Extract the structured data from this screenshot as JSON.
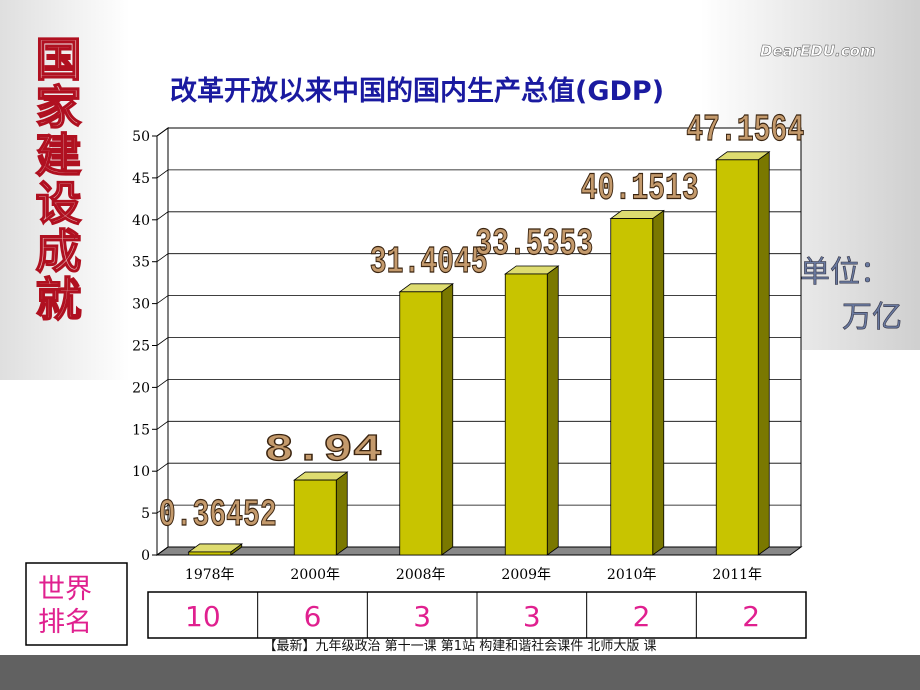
{
  "side_title": "国家建设成就",
  "logo": "DearEDU.com",
  "unit": [
    "单位：",
    "万亿"
  ],
  "footer": "【最新】九年级政治 第十一课 第1站 构建和谐社会课件 北师大版 课",
  "chart_data": {
    "type": "bar3d",
    "title": "改革开放以来中国的国内生产总值(GDP)",
    "categories": [
      "1978年",
      "2000年",
      "2008年",
      "2009年",
      "2010年",
      "2011年"
    ],
    "values": [
      0.36452,
      8.94,
      31.4045,
      33.5353,
      40.1513,
      47.1564
    ],
    "color": "#c8c400",
    "ylim": [
      0,
      50
    ],
    "yticks": [
      0,
      5,
      10,
      15,
      20,
      25,
      30,
      35,
      40,
      45,
      50
    ],
    "grid": true
  },
  "ranking": {
    "label": [
      "世界",
      "排名"
    ],
    "values": [
      10,
      6,
      3,
      3,
      2,
      2
    ]
  }
}
